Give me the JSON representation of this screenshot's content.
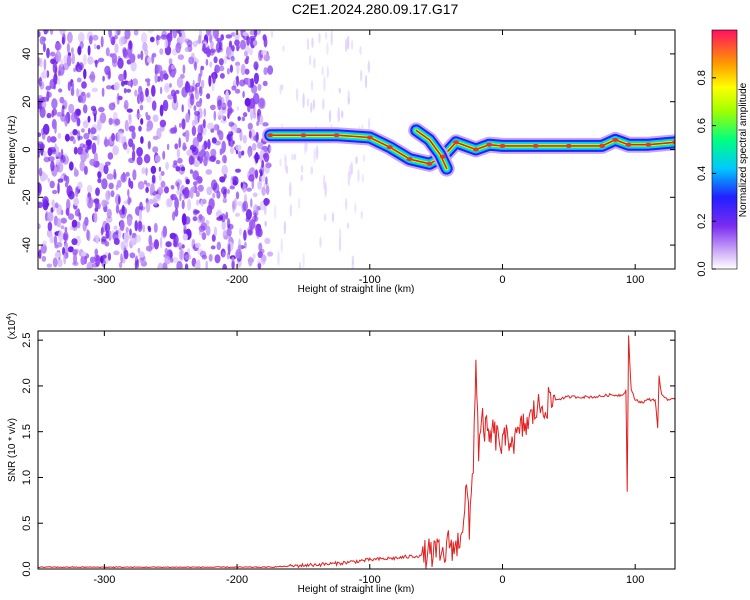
{
  "title": "C2E1.2024.280.09.17.G17",
  "colors": {
    "snr_line": "#e02020",
    "background": "#ffffff",
    "axis": "#000000",
    "noise": "#8a3cf0",
    "ridge_core": "#dd2222"
  },
  "chart_data": [
    {
      "type": "heatmap",
      "xlabel": "Height of straight line (km)",
      "ylabel": "Frequency (Hz)",
      "xlim": [
        -350,
        130
      ],
      "ylim": [
        -50,
        50
      ],
      "xticks": [
        -300,
        -200,
        -100,
        0,
        100
      ],
      "yticks": [
        -40,
        -20,
        0,
        20,
        40
      ],
      "colorbar": {
        "label": "Normalized spectral amplitude",
        "range": [
          0.0,
          1.0
        ],
        "ticks": [
          0.0,
          0.2,
          0.4,
          0.6,
          0.8
        ],
        "colormap": "rainbow (white-purple-blue-cyan-green-yellow-orange-red)"
      },
      "noise_region": [
        -350,
        -175
      ],
      "ridge": {
        "x": [
          -175,
          -150,
          -125,
          -100,
          -85,
          -70,
          -55,
          -45,
          -35,
          -20,
          -10,
          0,
          25,
          50,
          75,
          85,
          95,
          110,
          130
        ],
        "y": [
          6,
          6,
          6,
          5,
          1,
          -4,
          -6,
          -3,
          3,
          0,
          2,
          1.5,
          1.5,
          1.5,
          1.5,
          4,
          2,
          2,
          3
        ]
      },
      "branch": {
        "x": [
          -65,
          -55,
          -47,
          -42
        ],
        "y": [
          8,
          4,
          -2,
          -8
        ]
      }
    },
    {
      "type": "line",
      "xlabel": "Height of straight line (km)",
      "ylabel": "SNR (10 * v/v)",
      "ylabel_exponent": "(x10",
      "ylabel_exponent_power": "4",
      "ylabel_exponent_close": ")",
      "xlim": [
        -350,
        130
      ],
      "ylim": [
        0,
        2.6
      ],
      "xticks": [
        -300,
        -200,
        -100,
        0,
        100
      ],
      "yticks": [
        "0.0",
        "0.5",
        "1.0",
        "1.5",
        "2.0",
        "2.5"
      ],
      "series": [
        {
          "x": [
            -350,
            -300,
            -250,
            -200,
            -175,
            -150,
            -125,
            -100,
            -80,
            -60,
            -50,
            -45,
            -40,
            -35,
            -30,
            -27,
            -25,
            -22,
            -20,
            -18,
            -15,
            -12,
            -10,
            -8,
            -5,
            0,
            5,
            10,
            15,
            20,
            25,
            30,
            40,
            50,
            60,
            70,
            80,
            90,
            93,
            94,
            95,
            97,
            100,
            105,
            110,
            115,
            117,
            118,
            120,
            125,
            130
          ],
          "y": [
            0.02,
            0.02,
            0.02,
            0.02,
            0.02,
            0.04,
            0.06,
            0.1,
            0.12,
            0.15,
            0.18,
            0.12,
            0.3,
            0.2,
            0.5,
            0.9,
            0.4,
            1.2,
            2.3,
            1.3,
            1.6,
            1.5,
            1.4,
            1.5,
            1.45,
            1.35,
            1.45,
            1.4,
            1.55,
            1.6,
            1.75,
            1.78,
            1.85,
            1.88,
            1.88,
            1.88,
            1.9,
            1.9,
            1.95,
            0.85,
            2.55,
            1.95,
            1.85,
            1.82,
            1.85,
            1.85,
            1.55,
            2.1,
            1.9,
            1.85,
            1.85
          ]
        }
      ]
    }
  ]
}
